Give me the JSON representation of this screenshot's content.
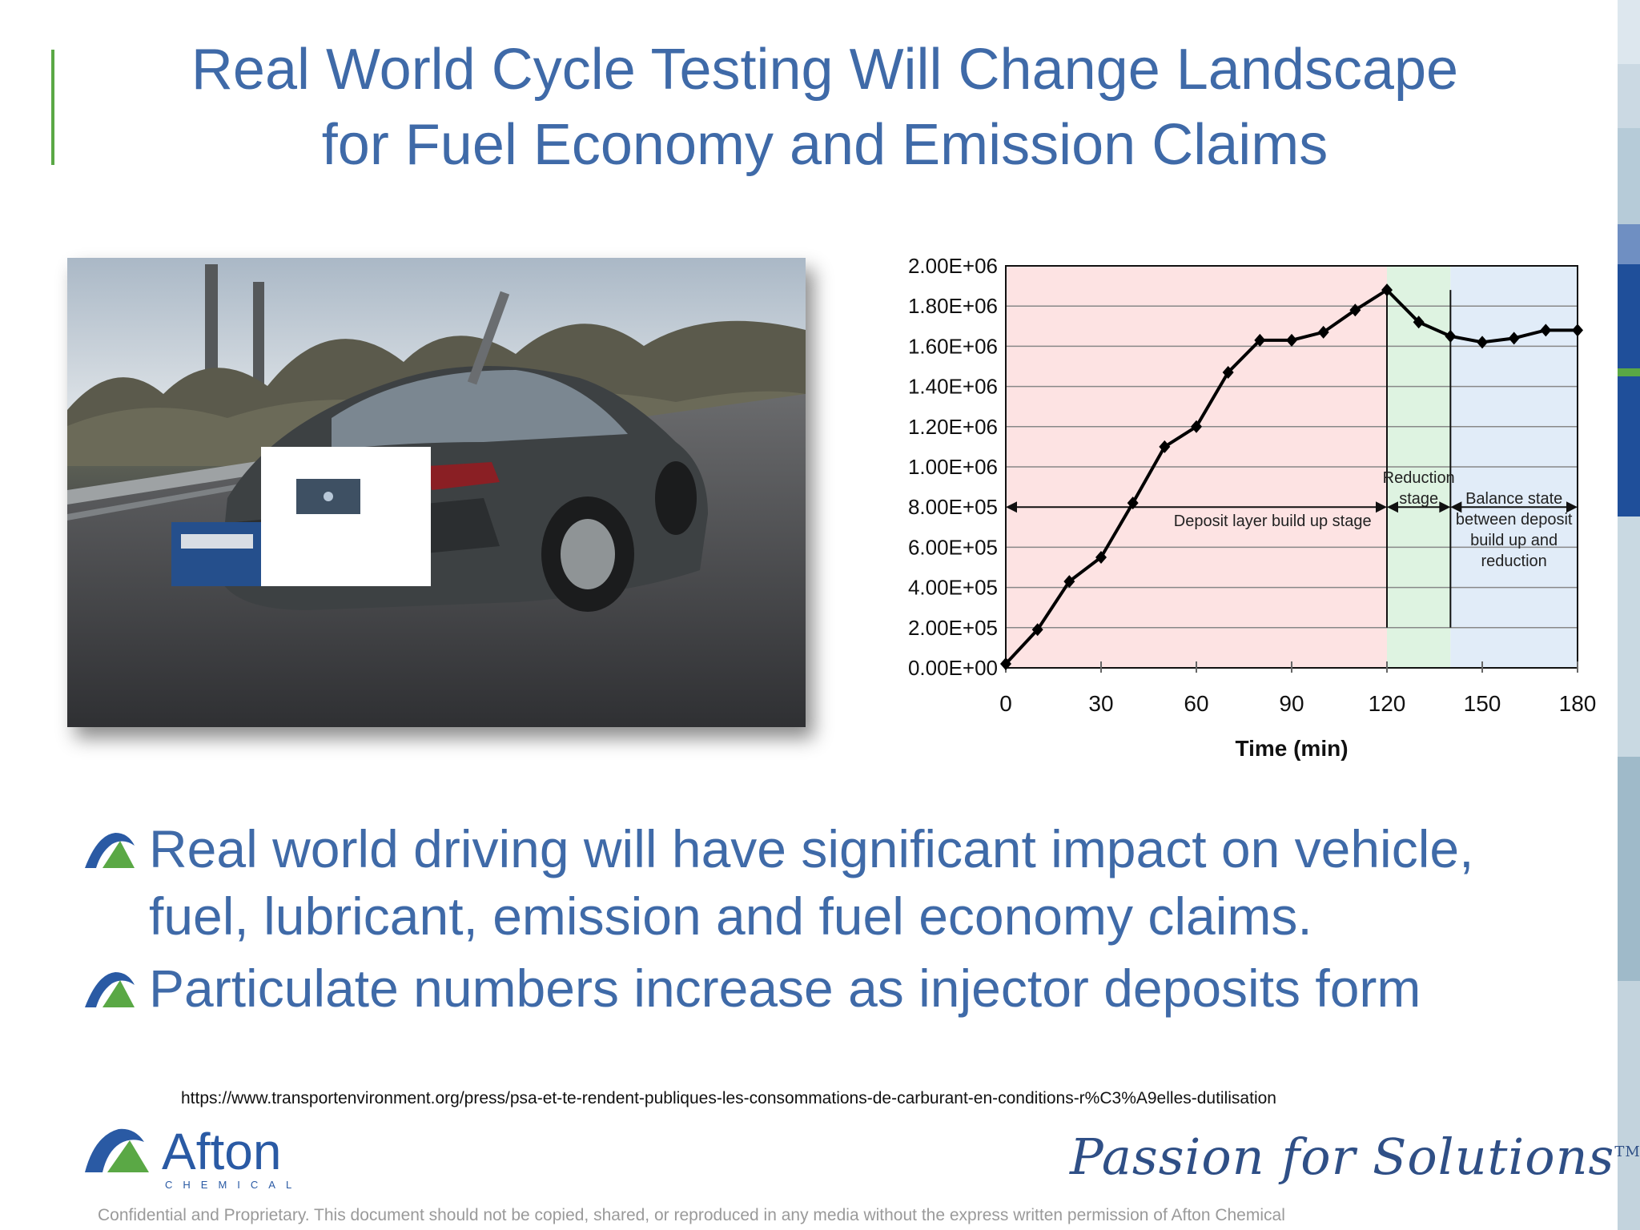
{
  "slide": {
    "title_line1": "Real World Cycle Testing Will Change Landscape",
    "title_line2": "for Fuel Economy and Emission Claims",
    "accent_color": "#5aa845",
    "title_color": "#3f6aa8"
  },
  "bullets": [
    {
      "icon": "afton-triangle-icon",
      "line1": "Real world driving will have significant impact on vehicle,",
      "line2": "fuel, lubricant, emission and fuel economy claims."
    },
    {
      "icon": "afton-triangle-icon",
      "line1": "Particulate numbers increase as injector deposits form",
      "line2": ""
    }
  ],
  "source_url": "https://www.transportenvironment.org/press/psa-et-te-rendent-publiques-les-consommations-de-carburant-en-conditions-r%C3%A9elles-dutilisation",
  "footer": {
    "logo_name": "Afton",
    "logo_sub": "CHEMICAL",
    "tagline": "Passion for Solutions",
    "tagline_mark": "TM",
    "confidential": "Confidential and Proprietary. This document should not be copied, shared, or reproduced in any media without the express written permission of Afton   Chemical"
  },
  "photo": {
    "icon": "test-car-on-highway-photo"
  },
  "chart_data": {
    "type": "line",
    "title": "",
    "xlabel": "Time (min)",
    "ylabel": "",
    "xlim": [
      0,
      180
    ],
    "ylim": [
      0,
      2000000
    ],
    "x_ticks": [
      "0",
      "30",
      "60",
      "90",
      "120",
      "150",
      "180"
    ],
    "y_ticks": [
      "0.00E+00",
      "2.00E+05",
      "4.00E+05",
      "6.00E+05",
      "8.00E+05",
      "1.00E+06",
      "1.20E+06",
      "1.40E+06",
      "1.60E+06",
      "1.80E+06",
      "2.00E+06"
    ],
    "grid": true,
    "series": [
      {
        "x": [
          0,
          10,
          20,
          30,
          40,
          50,
          60,
          70,
          80,
          90,
          100,
          110,
          120,
          130,
          140,
          150,
          160,
          170,
          180
        ],
        "values": [
          20000,
          190000,
          430000,
          550000,
          820000,
          1100000,
          1200000,
          1470000,
          1630000,
          1630000,
          1670000,
          1780000,
          1880000,
          1720000,
          1650000,
          1620000,
          1640000,
          1680000,
          1680000
        ],
        "color": "#000000"
      }
    ],
    "stages": [
      {
        "label": "Deposit layer build up stage",
        "x_start": 0,
        "x_end": 120,
        "color": "#fde3e3"
      },
      {
        "label": "Reduction stage",
        "line1": "Reduction",
        "line2": "stage",
        "x_start": 120,
        "x_end": 140,
        "color": "#def3e1"
      },
      {
        "label": "Balance state between deposit build up and reduction",
        "line1": "Balance state",
        "line2": "between deposit",
        "line3": "build up and",
        "line4": "reduction",
        "x_start": 140,
        "x_end": 180,
        "color": "#e1ecf8"
      }
    ]
  }
}
